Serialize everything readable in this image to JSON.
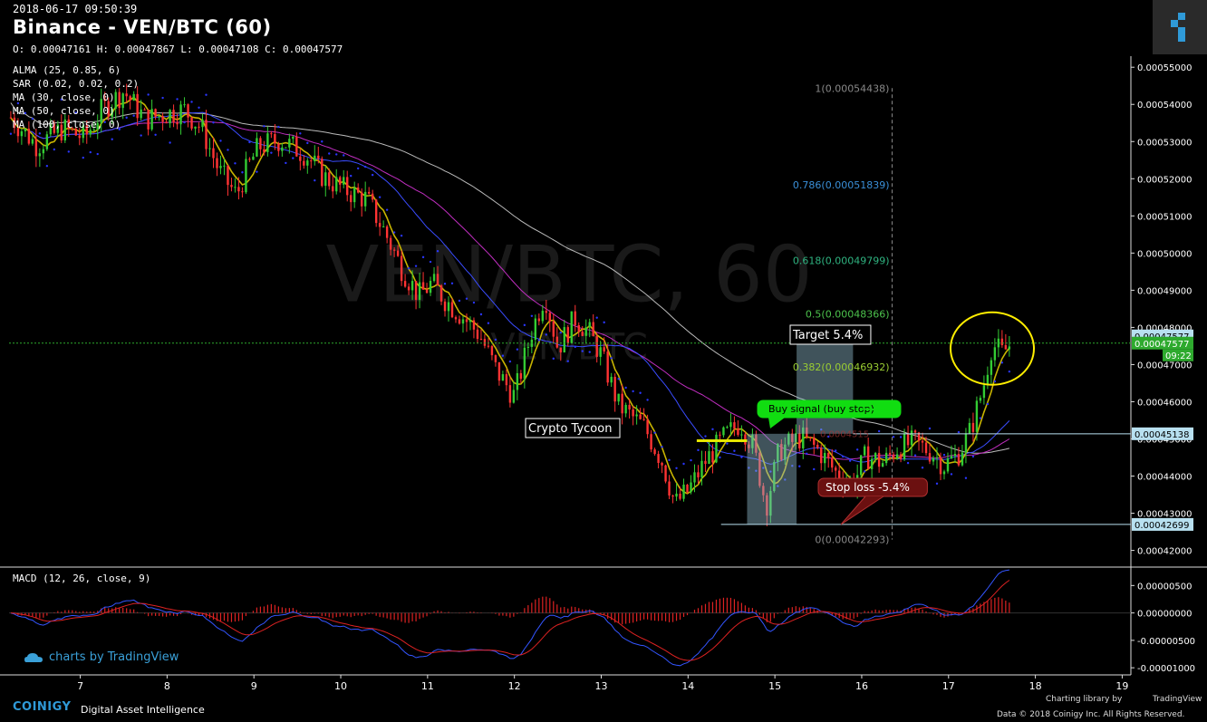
{
  "header": {
    "timestamp": "2018-06-17 09:50:39",
    "title": "Binance - VEN/BTC (60)",
    "ohlc": "O: 0.00047161 H: 0.00047867 L: 0.00047108 C: 0.00047577",
    "watermark_main": "VEN/BTC, 60",
    "watermark_sub": "VEN/BTC"
  },
  "indicators": [
    "ALMA (25, 0.85, 6)",
    "SAR (0.02, 0.02, 0.2)",
    "MA (30, close, 0)",
    "MA (50, close, 0)",
    "MA (100, close, 0)"
  ],
  "macd_label": "MACD (12, 26, close, 9)",
  "annotations": {
    "crypto_tycoon": "Crypto Tycoon",
    "target": "Target 5.4%",
    "buy_signal": "Buy signal (buy stop)",
    "stop_loss": "Stop loss -5.4%",
    "entry_hidden": "0.0004515",
    "countdown": "09:22"
  },
  "fib_levels": [
    {
      "label": "1(0.00054438)",
      "value": 0.00054438,
      "color": "#888888"
    },
    {
      "label": "0.786(0.00051839)",
      "value": 0.00051839,
      "color": "#3a8fd8"
    },
    {
      "label": "0.618(0.00049799)",
      "value": 0.00049799,
      "color": "#2fb380"
    },
    {
      "label": "0.5(0.00048366)",
      "value": 0.00048366,
      "color": "#4cc24c"
    },
    {
      "label": "0.382(0.00046932)",
      "value": 0.00046932,
      "color": "#9acd32"
    },
    {
      "label": "0(0.00042293)",
      "value": 0.00042293,
      "color": "#888888"
    }
  ],
  "price_markers": [
    {
      "label": "0.00047577",
      "value": 0.00047577,
      "bg": "#b8e0f0",
      "fg": "#000000"
    },
    {
      "label": "0.00047577",
      "value": 0.00047577,
      "bg": "#2eaa2e",
      "fg": "#ffffff"
    },
    {
      "label": "0.00045138",
      "value": 0.00045138,
      "bg": "#b8e0f0",
      "fg": "#000000"
    },
    {
      "label": "0.00042699",
      "value": 0.00042699,
      "bg": "#b8e0f0",
      "fg": "#000000"
    }
  ],
  "colors": {
    "up": "#33cc33",
    "down": "#ff3333",
    "alma": "#c8b400",
    "ma30": "#3a4cff",
    "ma50": "#c02ec0",
    "ma100": "#bbbbbb",
    "sar": "#2a36ff",
    "macd_line": "#3355ff",
    "signal_line": "#dd2222",
    "hist": "#dd2222"
  },
  "branding": {
    "tv_link": "charts by TradingView",
    "coinigy": "COINIGY",
    "coinigy_tag": "Digital Asset Intelligence",
    "charting_by": "Charting library by",
    "tv_name": "TradingView",
    "data_credit": "Data © 2018     Coinigy Inc. All Rights Reserved."
  },
  "chart_data": {
    "type": "candlestick",
    "x_ticks": [
      "7",
      "8",
      "9",
      "10",
      "11",
      "12",
      "13",
      "14",
      "15",
      "16",
      "17",
      "18",
      "19"
    ],
    "x_tick_days": [
      7,
      8,
      9,
      10,
      11,
      12,
      13,
      14,
      15,
      16,
      17,
      18,
      19
    ],
    "x_range_days": [
      6.18,
      19.1
    ],
    "y_ticks": [
      "0.00055000",
      "0.00054000",
      "0.00053000",
      "0.00052000",
      "0.00051000",
      "0.00050000",
      "0.00049000",
      "0.00048000",
      "0.00047000",
      "0.00046000",
      "0.00045000",
      "0.00044000",
      "0.00043000",
      "0.00042000"
    ],
    "y_range": [
      0.000416,
      0.000552
    ],
    "macd_y_ticks": [
      "0.00000500",
      "0.00000000",
      "-0.00000500",
      "-0.00001000"
    ],
    "macd_y_range": [
      -1.13e-05,
      7.7e-06
    ],
    "price_path": [
      [
        6.2,
        0.0005365
      ],
      [
        6.5,
        0.000529
      ],
      [
        6.8,
        0.0005335
      ],
      [
        7.05,
        0.000531
      ],
      [
        7.25,
        0.0005385
      ],
      [
        7.5,
        0.0005435
      ],
      [
        7.75,
        0.000536
      ],
      [
        8.0,
        0.0005375
      ],
      [
        8.2,
        0.0005385
      ],
      [
        8.4,
        0.0005335
      ],
      [
        8.6,
        0.000522
      ],
      [
        8.8,
        0.0005155
      ],
      [
        8.9,
        0.0005215
      ],
      [
        9.05,
        0.0005285
      ],
      [
        9.3,
        0.0005305
      ],
      [
        9.6,
        0.0005265
      ],
      [
        9.8,
        0.0005205
      ],
      [
        10.05,
        0.000517
      ],
      [
        10.3,
        0.0005145
      ],
      [
        10.5,
        0.000506
      ],
      [
        10.7,
        0.000496
      ],
      [
        10.9,
        0.0004885
      ],
      [
        11.05,
        0.000492
      ],
      [
        11.2,
        0.0004875
      ],
      [
        11.4,
        0.000483
      ],
      [
        11.6,
        0.000478
      ],
      [
        11.8,
        0.000468
      ],
      [
        12.0,
        0.0004615
      ],
      [
        12.2,
        0.000479
      ],
      [
        12.35,
        0.000489
      ],
      [
        12.5,
        0.0004745
      ],
      [
        12.7,
        0.0004825
      ],
      [
        12.85,
        0.000479
      ],
      [
        13.0,
        0.0004725
      ],
      [
        13.2,
        0.000459
      ],
      [
        13.5,
        0.000453
      ],
      [
        13.7,
        0.000444
      ],
      [
        13.85,
        0.0004325
      ],
      [
        14.0,
        0.000436
      ],
      [
        14.2,
        0.000444
      ],
      [
        14.4,
        0.00045
      ],
      [
        14.6,
        0.0004545
      ],
      [
        14.75,
        0.000448
      ],
      [
        14.9,
        0.000432
      ],
      [
        15.05,
        0.000447
      ],
      [
        15.3,
        0.0004505
      ],
      [
        15.5,
        0.000447
      ],
      [
        15.7,
        0.000441
      ],
      [
        15.9,
        0.000438
      ],
      [
        16.05,
        0.0004455
      ],
      [
        16.25,
        0.0004435
      ],
      [
        16.4,
        0.0004475
      ],
      [
        16.6,
        0.000449
      ],
      [
        16.8,
        0.0004465
      ],
      [
        16.95,
        0.000443
      ],
      [
        17.1,
        0.0004455
      ],
      [
        17.25,
        0.000452
      ],
      [
        17.4,
        0.000464
      ],
      [
        17.5,
        0.0004755
      ],
      [
        17.62,
        0.000473
      ],
      [
        17.72,
        0.0004757
      ]
    ]
  }
}
